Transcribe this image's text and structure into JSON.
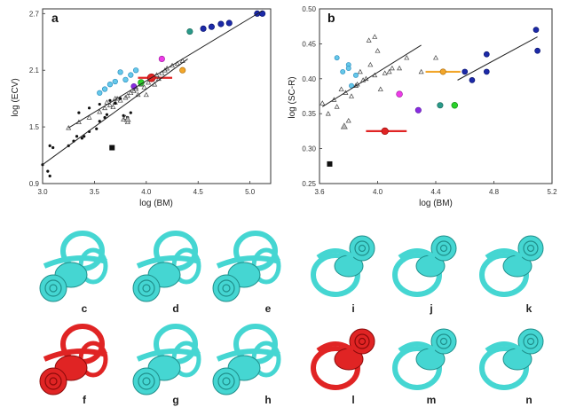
{
  "chart_data": [
    {
      "panel": "a",
      "type": "scatter",
      "xlabel": "log (BM)",
      "ylabel": "log (ECV)",
      "xlim": [
        3.0,
        5.2
      ],
      "ylim": [
        0.9,
        2.75
      ],
      "x_ticks": [
        "3.0",
        "3.5",
        "4.0",
        "4.5",
        "5.0"
      ],
      "y_ticks": [
        "0.9",
        "1.5",
        "2.1",
        "2.7"
      ],
      "grid": false,
      "series": [
        {
          "values": [
            [
              3.25,
              1.49
            ],
            [
              3.35,
              1.55
            ],
            [
              3.45,
              1.6
            ],
            [
              3.55,
              1.66
            ],
            [
              3.6,
              1.7
            ],
            [
              3.65,
              1.73
            ],
            [
              3.7,
              1.76
            ],
            [
              3.72,
              1.8
            ],
            [
              3.75,
              1.78
            ],
            [
              3.8,
              1.81
            ],
            [
              3.82,
              1.83
            ],
            [
              3.85,
              1.86
            ],
            [
              3.88,
              1.88
            ],
            [
              3.9,
              1.9
            ],
            [
              3.92,
              1.84
            ],
            [
              3.95,
              1.95
            ],
            [
              3.98,
              1.92
            ],
            [
              4.02,
              1.97
            ],
            [
              4.05,
              2.0
            ],
            [
              4.08,
              1.95
            ],
            [
              4.1,
              2.05
            ],
            [
              4.12,
              2.01
            ],
            [
              4.15,
              2.07
            ],
            [
              4.18,
              2.1
            ],
            [
              4.2,
              2.12
            ],
            [
              4.25,
              2.15
            ],
            [
              4.3,
              2.17
            ],
            [
              4.35,
              2.2
            ],
            [
              3.78,
              1.58
            ],
            [
              3.8,
              1.6
            ],
            [
              3.82,
              1.55
            ],
            [
              4.0,
              1.84
            ],
            [
              3.7,
              1.8
            ],
            [
              3.9,
              1.92
            ],
            [
              3.62,
              1.76
            ],
            [
              3.68,
              1.71
            ]
          ]
        },
        {
          "values": [
            [
              3.0,
              1.1
            ],
            [
              3.05,
              1.03
            ],
            [
              3.07,
              0.98
            ],
            [
              3.07,
              1.3
            ],
            [
              3.1,
              1.28
            ],
            [
              3.25,
              1.3
            ],
            [
              3.3,
              1.35
            ],
            [
              3.33,
              1.4
            ],
            [
              3.38,
              1.38
            ],
            [
              3.4,
              1.4
            ],
            [
              3.45,
              1.45
            ],
            [
              3.52,
              1.48
            ],
            [
              3.55,
              1.56
            ],
            [
              3.6,
              1.6
            ],
            [
              3.62,
              1.63
            ],
            [
              3.35,
              1.65
            ],
            [
              3.45,
              1.7
            ],
            [
              3.7,
              1.75
            ],
            [
              3.75,
              1.8
            ],
            [
              3.78,
              1.62
            ],
            [
              3.82,
              1.6
            ],
            [
              3.85,
              1.65
            ],
            [
              3.65,
              1.78
            ],
            [
              3.55,
              1.74
            ]
          ]
        },
        {
          "values": [
            [
              3.55,
              1.86
            ],
            [
              3.6,
              1.9
            ],
            [
              3.65,
              1.95
            ],
            [
              3.7,
              1.98
            ],
            [
              3.8,
              2.0
            ],
            [
              3.85,
              2.05
            ],
            [
              3.9,
              2.1
            ],
            [
              3.75,
              2.08
            ]
          ]
        },
        {
          "values": [
            [
              4.55,
              2.54
            ],
            [
              4.63,
              2.56
            ],
            [
              4.72,
              2.59
            ],
            [
              4.8,
              2.6
            ],
            [
              5.07,
              2.7
            ],
            [
              5.12,
              2.7
            ]
          ]
        },
        {
          "values": [
            [
              3.67,
              1.28
            ]
          ]
        },
        {
          "values": [
            [
              4.05,
              2.02
            ]
          ]
        },
        {
          "values": [
            [
              3.95,
              1.97
            ]
          ]
        },
        {
          "values": [
            [
              3.88,
              1.93
            ]
          ]
        },
        {
          "values": [
            [
              4.15,
              2.22
            ]
          ]
        },
        {
          "values": [
            [
              4.35,
              2.1
            ]
          ]
        },
        {
          "values": [
            [
              4.42,
              2.51
            ]
          ]
        },
        {
          "values": [
            [
              3.82,
              1.58
            ]
          ]
        },
        {
          "values": [
            [
              3.25,
              1.49
            ],
            [
              5.12,
              2.73
            ]
          ]
        },
        {
          "values": [
            [
              3.0,
              1.1
            ],
            [
              4.4,
              2.22
            ]
          ]
        }
      ],
      "error_bars": [
        {
          "x": 4.05,
          "y": 2.02,
          "xerr": [
            3.92,
            4.25
          ]
        }
      ]
    },
    {
      "panel": "b",
      "type": "scatter",
      "xlabel": "log (BM)",
      "ylabel": "log (SC-R)",
      "xlim": [
        3.6,
        5.2
      ],
      "ylim": [
        0.25,
        0.5
      ],
      "x_ticks": [
        "3.6",
        "4.0",
        "4.4",
        "4.8",
        "5.2"
      ],
      "y_ticks": [
        "0.25",
        "0.30",
        "0.35",
        "0.40",
        "0.45",
        "0.50"
      ],
      "grid": false,
      "series": [
        {
          "values": [
            [
              3.62,
              0.365
            ],
            [
              3.7,
              0.37
            ],
            [
              3.75,
              0.385
            ],
            [
              3.78,
              0.38
            ],
            [
              3.82,
              0.375
            ],
            [
              3.86,
              0.392
            ],
            [
              3.9,
              0.398
            ],
            [
              3.92,
              0.4
            ],
            [
              3.95,
              0.42
            ],
            [
              3.98,
              0.405
            ],
            [
              4.02,
              0.385
            ],
            [
              4.05,
              0.408
            ],
            [
              4.08,
              0.41
            ],
            [
              4.1,
              0.415
            ],
            [
              4.15,
              0.415
            ],
            [
              4.2,
              0.43
            ],
            [
              3.94,
              0.455
            ],
            [
              3.98,
              0.46
            ],
            [
              4.3,
              0.41
            ],
            [
              4.4,
              0.43
            ],
            [
              3.8,
              0.34
            ],
            [
              3.66,
              0.35
            ],
            [
              3.72,
              0.36
            ],
            [
              3.88,
              0.41
            ],
            [
              4.0,
              0.44
            ],
            [
              3.85,
              0.39
            ]
          ]
        },
        {
          "values": [
            [
              3.72,
              0.43
            ],
            [
              3.8,
              0.42
            ],
            [
              3.8,
              0.415
            ],
            [
              3.76,
              0.41
            ],
            [
              3.82,
              0.39
            ],
            [
              3.85,
              0.405
            ]
          ]
        },
        {
          "values": [
            [
              4.6,
              0.41
            ],
            [
              4.65,
              0.398
            ],
            [
              4.75,
              0.435
            ],
            [
              4.75,
              0.41
            ],
            [
              5.09,
              0.47
            ],
            [
              5.1,
              0.44
            ]
          ]
        },
        {
          "values": [
            [
              3.67,
              0.278
            ]
          ]
        },
        {
          "values": [
            [
              3.77,
              0.332
            ]
          ]
        },
        {
          "values": [
            [
              4.05,
              0.325
            ]
          ]
        },
        {
          "values": [
            [
              4.45,
              0.41
            ]
          ]
        },
        {
          "values": [
            [
              4.15,
              0.378
            ]
          ]
        },
        {
          "values": [
            [
              4.28,
              0.355
            ]
          ]
        },
        {
          "values": [
            [
              4.43,
              0.362
            ]
          ]
        },
        {
          "values": [
            [
              4.53,
              0.362
            ]
          ]
        },
        {
          "values": [
            [
              3.62,
              0.36
            ],
            [
              4.3,
              0.448
            ]
          ]
        },
        {
          "values": [
            [
              4.55,
              0.398
            ],
            [
              5.1,
              0.46
            ]
          ]
        }
      ],
      "error_bars": [
        {
          "x": 4.05,
          "y": 0.325,
          "xerr": [
            3.92,
            4.2
          ]
        },
        {
          "x": 4.45,
          "y": 0.41,
          "xerr": [
            4.33,
            4.57
          ]
        }
      ]
    }
  ],
  "sub_images": [
    {
      "label": "c",
      "color": "#45d6d2"
    },
    {
      "label": "d",
      "color": "#45d6d2"
    },
    {
      "label": "e",
      "color": "#45d6d2"
    },
    {
      "label": "f",
      "color": "#e02424"
    },
    {
      "label": "g",
      "color": "#45d6d2"
    },
    {
      "label": "h",
      "color": "#45d6d2"
    },
    {
      "label": "i",
      "color": "#45d6d2"
    },
    {
      "label": "j",
      "color": "#45d6d2"
    },
    {
      "label": "k",
      "color": "#45d6d2"
    },
    {
      "label": "l",
      "color": "#e02424"
    },
    {
      "label": "m",
      "color": "#45d6d2"
    },
    {
      "label": "n",
      "color": "#45d6d2"
    }
  ]
}
